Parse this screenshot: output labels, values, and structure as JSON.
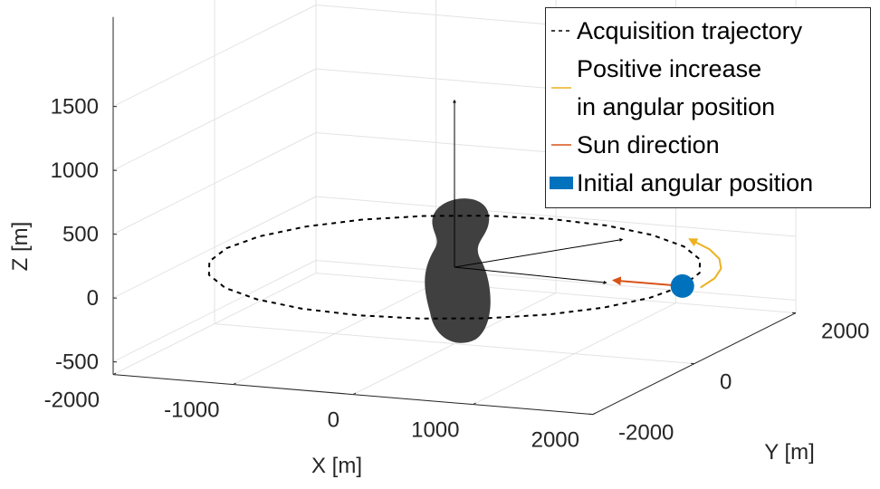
{
  "chart_data": {
    "type": "line3d",
    "xlabel": "X [m]",
    "ylabel": "Y [m]",
    "zlabel": "Z [m]",
    "xlim": [
      -2000,
      2000
    ],
    "ylim": [
      -2000,
      2000
    ],
    "zlim": [
      -600,
      2200
    ],
    "xticks": [
      -2000,
      -1000,
      0,
      1000,
      2000
    ],
    "yticks": [
      -2000,
      0,
      2000
    ],
    "zticks": [
      -500,
      0,
      500,
      1000,
      1500
    ],
    "grid": true,
    "legend_position": "northeast",
    "series": [
      {
        "name": "Acquisition trajectory",
        "color": "#000000",
        "style": "dashed",
        "x": [
          1900,
          1835,
          1645,
          1344,
          950,
          492,
          0,
          -492,
          -950,
          -1344,
          -1645,
          -1835,
          -1900,
          -1835,
          -1645,
          -1344,
          -950,
          -492,
          0,
          492,
          950,
          1344,
          1645,
          1835,
          1900
        ],
        "y": [
          0,
          492,
          950,
          1344,
          1645,
          1835,
          1900,
          1835,
          1645,
          1344,
          950,
          492,
          0,
          -492,
          -950,
          -1344,
          -1645,
          -1835,
          -1900,
          -1835,
          -1645,
          -1344,
          -950,
          -492,
          0
        ],
        "z": [
          0,
          0,
          0,
          0,
          0,
          0,
          0,
          0,
          0,
          0,
          0,
          0,
          0,
          0,
          0,
          0,
          0,
          0,
          0,
          0,
          0,
          0,
          0,
          0,
          0
        ]
      },
      {
        "name": "Positive increase\nin angular position",
        "color": "#EDB120",
        "style": "arrow",
        "x": [
          2050,
          2019,
          1926,
          1775,
          1570,
          1318
        ],
        "y": [
          0,
          356,
          701,
          1025,
          1318,
          1570
        ],
        "z": [
          0,
          0,
          0,
          0,
          0,
          0
        ]
      },
      {
        "name": "Sun direction",
        "color": "#D95319",
        "style": "arrow",
        "x": [
          1900,
          1350
        ],
        "y": [
          0,
          0
        ],
        "z": [
          0,
          0
        ]
      },
      {
        "name": "Initial angular position",
        "color": "#0072BD",
        "style": "marker",
        "x": [
          1900
        ],
        "y": [
          0
        ],
        "z": [
          0
        ]
      }
    ],
    "body_axes": [
      {
        "x": [
          0,
          0
        ],
        "y": [
          0,
          0
        ],
        "z": [
          0,
          1300
        ]
      },
      {
        "x": [
          0,
          1300
        ],
        "y": [
          0,
          -100
        ],
        "z": [
          0,
          0
        ]
      },
      {
        "x": [
          0,
          800
        ],
        "y": [
          0,
          1400
        ],
        "z": [
          0,
          0
        ]
      }
    ]
  }
}
